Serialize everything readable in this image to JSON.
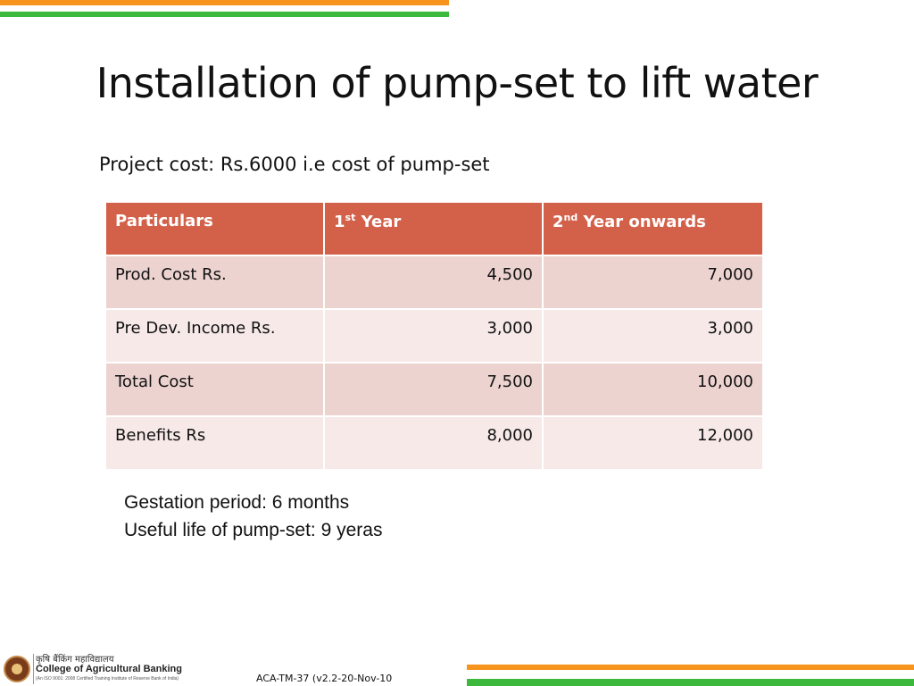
{
  "slide": {
    "title": "Installation of pump-set to lift water",
    "subtitle": "Project cost: Rs.6000 i.e cost of pump-set"
  },
  "table": {
    "headers": [
      {
        "label": "Particulars",
        "sup": "",
        "rest": ""
      },
      {
        "label": "1",
        "sup": "st",
        "rest": " Year"
      },
      {
        "label": "2",
        "sup": "nd",
        "rest": " Year onwards"
      }
    ],
    "rows": [
      {
        "particular": "Prod. Cost Rs.",
        "year1": "4,500",
        "year2": "7,000"
      },
      {
        "particular": "Pre Dev. Income Rs.",
        "year1": "3,000",
        "year2": "3,000"
      },
      {
        "particular": "Total Cost",
        "year1": "7,500",
        "year2": "10,000"
      },
      {
        "particular": "Benefits Rs",
        "year1": "8,000",
        "year2": "12,000"
      }
    ]
  },
  "notes": {
    "gestation": "Gestation period: 6 months",
    "useful_life": "Useful life of pump-set: 9 yeras"
  },
  "logo": {
    "hindi_name": "कृषि बैंकिंग महाविद्यालय",
    "name": "College of Agricultural Banking",
    "certification": "(An ISO 9001: 2008 Certified Training Institute of Reserve Bank of India)"
  },
  "footer": {
    "code": "ACA-TM-37 (v2.2-20-Nov-10"
  },
  "colors": {
    "accent_orange": "#f7941d",
    "accent_green": "#3cb93c",
    "table_header": "#d3614a",
    "row_dark": "#ecd3d0",
    "row_light": "#f6e9e8"
  }
}
